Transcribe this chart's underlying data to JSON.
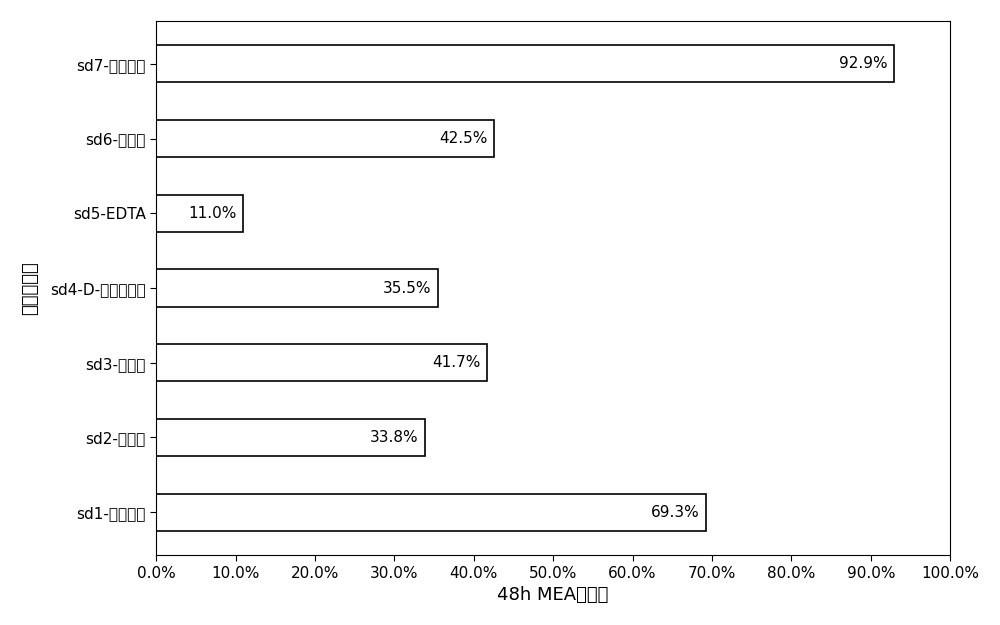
{
  "categories": [
    "sd1-无添加剂",
    "sd2-丁酰肺",
    "sd3-丙酰肺",
    "sd4-D-异抗坏血酸",
    "sd5-EDTA",
    "sd6-碳酰肺",
    "sd7-赤虐糖醇"
  ],
  "values": [
    69.3,
    33.8,
    41.7,
    35.5,
    11.0,
    42.5,
    92.9
  ],
  "bar_color": "#ffffff",
  "bar_edgecolor": "#000000",
  "bar_linewidth": 1.2,
  "xlabel": "48h MEA存留率",
  "ylabel": "添加剂种类",
  "xlim": [
    0,
    100
  ],
  "xticks": [
    0,
    10,
    20,
    30,
    40,
    50,
    60,
    70,
    80,
    90,
    100
  ],
  "xticklabels": [
    "0.0%",
    "10.0%",
    "20.0%",
    "30.0%",
    "40.0%",
    "50.0%",
    "60.0%",
    "70.0%",
    "80.0%",
    "90.0%",
    "100.0%"
  ],
  "bar_height": 0.5,
  "label_fontsize": 13,
  "tick_fontsize": 11,
  "annotation_fontsize": 11,
  "background_color": "#ffffff"
}
